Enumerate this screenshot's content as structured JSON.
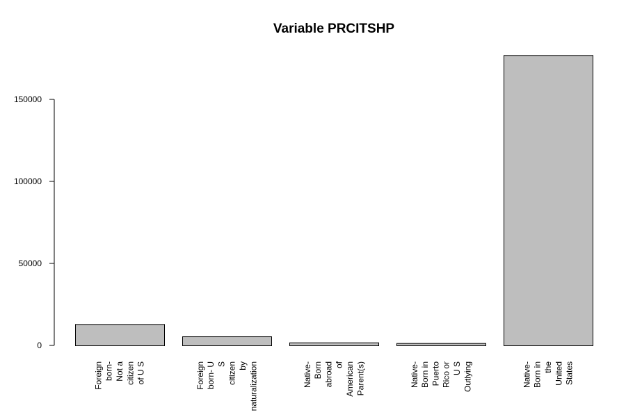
{
  "chart_data": {
    "type": "bar",
    "title": "Variable PRCITSHP",
    "xlabel": "",
    "ylabel": "",
    "categories": [
      "Foreign born- Not a citizen of U S",
      "Foreign born- U S citizen by naturalization",
      "Native- Born abroad of American Parent(s)",
      "Native- Born in Puerto Rico or U S Outlying",
      "Native- Born in the United States"
    ],
    "category_label_lines": [
      [
        "Foreign",
        "born-",
        "Not a",
        "citizen",
        "of U S"
      ],
      [
        "Foreign",
        "born- U",
        "S",
        "citizen",
        "by",
        "naturalization"
      ],
      [
        "Native-",
        "Born",
        "abroad",
        "of",
        "American",
        "Parent(s)"
      ],
      [
        "Native-",
        "Born in",
        "Puerto",
        "Rico or",
        "U S",
        "Outlying"
      ],
      [
        "Native-",
        "Born in",
        "the",
        "United",
        "States"
      ]
    ],
    "values": [
      13000,
      5500,
      1800,
      1400,
      177000
    ],
    "yticks": [
      0,
      50000,
      100000,
      150000
    ],
    "ylim": [
      0,
      177000
    ],
    "grid": false,
    "bar_color": "#bebebe",
    "border_color": "#000000"
  }
}
